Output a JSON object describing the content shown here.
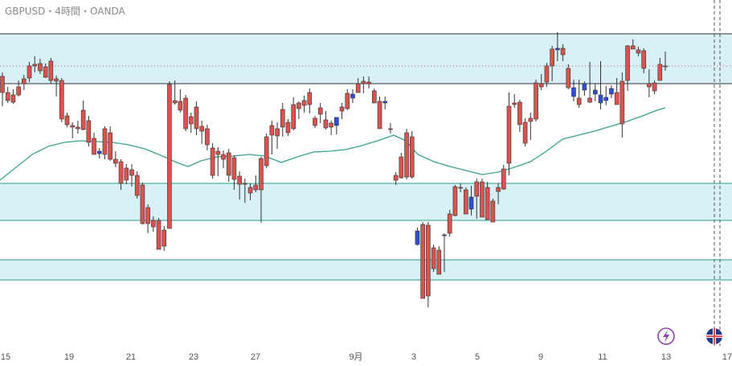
{
  "header": {
    "title": "GBPUSD・4時間・OANDA"
  },
  "colors": {
    "up": "#2f4ed8",
    "down": "#d9534f",
    "zone_fill": "#d7f1f7",
    "zone_line": "#2a9d8f",
    "ma": "#3aa38f",
    "vline": "#555555",
    "icon_purple": "#8e44ad",
    "icon_red": "#d9534f"
  },
  "chart_data": {
    "type": "candlestick",
    "title": "GBPUSD・4時間・OANDA",
    "xlabel": "",
    "ylabel": "",
    "x_tick_labels": [
      "15",
      "19",
      "21",
      "23",
      "27",
      "9月",
      "3",
      "5",
      "9",
      "11",
      "13",
      "17"
    ],
    "zones": [
      {
        "top": 42,
        "bottom": 104
      },
      {
        "top": 228,
        "bottom": 274
      },
      {
        "top": 323,
        "bottom": 348
      }
    ],
    "dotted_level": 82,
    "series": [
      {
        "values": [
          [
            95,
            132,
            90,
            115
          ],
          [
            115,
            128,
            108,
            125
          ],
          [
            118,
            129,
            111,
            127
          ],
          [
            108,
            120,
            100,
            118
          ],
          [
            98,
            112,
            93,
            104
          ],
          [
            82,
            102,
            77,
            97
          ],
          [
            80,
            90,
            70,
            82
          ],
          [
            79,
            92,
            73,
            88
          ],
          [
            83,
            97,
            79,
            96
          ],
          [
            76,
            104,
            72,
            100
          ],
          [
            98,
            120,
            94,
            101
          ],
          [
            100,
            152,
            97,
            148
          ],
          [
            144,
            158,
            140,
            155
          ],
          [
            156,
            172,
            152,
            158
          ],
          [
            158,
            166,
            150,
            160
          ],
          [
            137,
            162,
            125,
            161
          ],
          [
            150,
            182,
            144,
            177
          ],
          [
            172,
            190,
            165,
            192
          ],
          [
            191,
            197,
            184,
            188
          ],
          [
            160,
            198,
            157,
            192
          ],
          [
            165,
            200,
            157,
            198
          ],
          [
            198,
            208,
            188,
            203
          ],
          [
            201,
            236,
            198,
            228
          ],
          [
            209,
            229,
            204,
            224
          ],
          [
            211,
            232,
            204,
            218
          ],
          [
            218,
            247,
            213,
            243
          ],
          [
            230,
            279,
            227,
            278
          ],
          [
            258,
            290,
            254,
            278
          ],
          [
            274,
            288,
            269,
            282
          ],
          [
            274,
            306,
            271,
            310
          ],
          [
            286,
            312,
            281,
            306
          ],
          [
            105,
            283,
            101,
            284
          ],
          [
            125,
            130,
            100,
            128
          ],
          [
            126,
            140,
            111,
            137
          ],
          [
            122,
            163,
            118,
            160
          ],
          [
            145,
            165,
            140,
            154
          ],
          [
            133,
            168,
            126,
            160
          ],
          [
            157,
            179,
            150,
            163
          ],
          [
            160,
            187,
            155,
            180
          ],
          [
            184,
            222,
            178,
            218
          ],
          [
            188,
            219,
            183,
            192
          ],
          [
            192,
            209,
            187,
            198
          ],
          [
            190,
            226,
            185,
            218
          ],
          [
            196,
            236,
            193,
            223
          ],
          [
            219,
            248,
            213,
            229
          ],
          [
            228,
            252,
            222,
            229
          ],
          [
            233,
            249,
            228,
            240
          ],
          [
            230,
            239,
            218,
            236
          ],
          [
            197,
            277,
            195,
            236
          ],
          [
            170,
            209,
            166,
            206
          ],
          [
            156,
            192,
            150,
            168
          ],
          [
            160,
            185,
            152,
            169
          ],
          [
            136,
            170,
            128,
            158
          ],
          [
            152,
            169,
            148,
            165
          ],
          [
            130,
            162,
            121,
            160
          ],
          [
            128,
            148,
            126,
            135
          ],
          [
            125,
            140,
            119,
            131
          ],
          [
            115,
            141,
            110,
            130
          ],
          [
            147,
            159,
            144,
            156
          ],
          [
            134,
            153,
            128,
            142
          ],
          [
            149,
            161,
            138,
            159
          ],
          [
            153,
            168,
            150,
            158
          ],
          [
            156,
            167,
            147,
            146
          ],
          [
            133,
            148,
            128,
            138
          ],
          [
            116,
            137,
            111,
            135
          ],
          [
            122,
            128,
            111,
            117
          ],
          [
            104,
            114,
            97,
            115
          ],
          [
            101,
            116,
            95,
            104
          ],
          [
            102,
            110,
            95,
            104
          ],
          [
            113,
            128,
            110,
            128
          ],
          [
            126,
            140,
            120,
            160
          ],
          [
            128,
            136,
            120,
            126
          ],
          [
            160,
            166,
            153,
            160
          ],
          [
            218,
            230,
            214,
            224
          ],
          [
            195,
            222,
            190,
            221
          ],
          [
            165,
            223,
            160,
            220
          ],
          [
            170,
            222,
            163,
            220
          ],
          [
            304,
            305,
            283,
            287
          ],
          [
            279,
            341,
            276,
            371
          ],
          [
            280,
            382,
            276,
            368
          ],
          [
            308,
            338,
            304,
            334
          ],
          [
            311,
            335,
            306,
            341
          ],
          [
            293,
            338,
            290,
            292
          ],
          [
            266,
            294,
            261,
            290
          ],
          [
            232,
            269,
            230,
            268
          ],
          [
            233,
            239,
            228,
            234
          ],
          [
            236,
            266,
            233,
            266
          ],
          [
            260,
            268,
            231,
            245
          ],
          [
            226,
            272,
            222,
            244
          ],
          [
            226,
            245,
            222,
            270
          ],
          [
            233,
            272,
            226,
            273
          ],
          [
            250,
            276,
            247,
            276
          ],
          [
            233,
            254,
            228,
            238
          ],
          [
            210,
            236,
            205,
            235
          ],
          [
            132,
            218,
            115,
            203
          ],
          [
            128,
            134,
            117,
            130
          ],
          [
            127,
            164,
            124,
            155
          ],
          [
            152,
            182,
            147,
            178
          ],
          [
            147,
            174,
            140,
            151
          ],
          [
            103,
            151,
            99,
            148
          ],
          [
            104,
            112,
            92,
            108
          ],
          [
            82,
            108,
            78,
            102
          ],
          [
            61,
            101,
            57,
            82
          ],
          [
            62,
            76,
            40,
            60
          ],
          [
            60,
            76,
            55,
            68
          ],
          [
            85,
            111,
            80,
            109
          ],
          [
            120,
            126,
            99,
            109
          ],
          [
            122,
            134,
            99,
            130
          ],
          [
            112,
            119,
            101,
            104
          ],
          [
            122,
            128,
            77,
            127
          ],
          [
            117,
            126,
            104,
            112
          ],
          [
            128,
            136,
            76,
            118
          ],
          [
            125,
            131,
            107,
            121
          ],
          [
            117,
            122,
            106,
            110
          ],
          [
            115,
            130,
            97,
            130
          ],
          [
            101,
            171,
            90,
            154
          ],
          [
            57,
            113,
            56,
            100
          ],
          [
            57,
            58,
            49,
            61
          ],
          [
            62,
            70,
            58,
            66
          ],
          [
            63,
            91,
            60,
            85
          ],
          [
            104,
            121,
            86,
            108
          ],
          [
            103,
            117,
            100,
            113
          ],
          [
            80,
            88,
            72,
            100
          ],
          [
            82,
            88,
            64,
            82
          ]
        ],
        "ma": [
          [
            0,
            224
          ],
          [
            20,
            208
          ],
          [
            40,
            192
          ],
          [
            60,
            182
          ],
          [
            80,
            177
          ],
          [
            100,
            175
          ],
          [
            120,
            176
          ],
          [
            140,
            177
          ],
          [
            160,
            180
          ],
          [
            180,
            185
          ],
          [
            200,
            193
          ],
          [
            220,
            202
          ],
          [
            234,
            207
          ],
          [
            250,
            200
          ],
          [
            270,
            195
          ],
          [
            290,
            194
          ],
          [
            310,
            192
          ],
          [
            330,
            194
          ],
          [
            350,
            202
          ],
          [
            370,
            195
          ],
          [
            390,
            189
          ],
          [
            410,
            188
          ],
          [
            430,
            186
          ],
          [
            450,
            181
          ],
          [
            470,
            175
          ],
          [
            490,
            168
          ],
          [
            505,
            175
          ],
          [
            520,
            192
          ],
          [
            540,
            201
          ],
          [
            560,
            207
          ],
          [
            580,
            212
          ],
          [
            600,
            217
          ],
          [
            620,
            214
          ],
          [
            640,
            208
          ],
          [
            660,
            201
          ],
          [
            680,
            188
          ],
          [
            700,
            173
          ],
          [
            720,
            168
          ],
          [
            740,
            163
          ],
          [
            760,
            157
          ],
          [
            780,
            151
          ],
          [
            800,
            144
          ],
          [
            815,
            138
          ],
          [
            828,
            134
          ]
        ]
      }
    ]
  },
  "vlines": [
    889,
    896
  ],
  "icons": [
    "lightning-icon",
    "uk-flag-icon"
  ]
}
